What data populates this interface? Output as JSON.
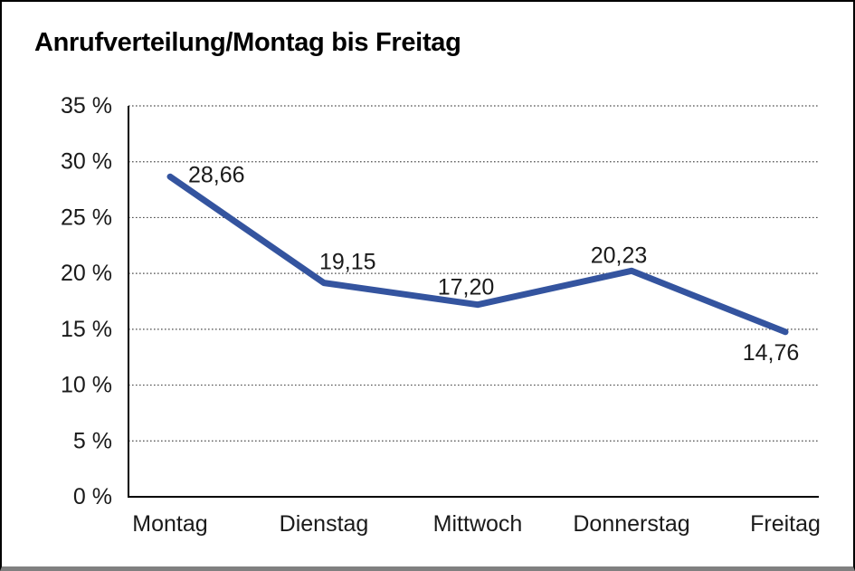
{
  "page": {
    "title": "Anrufverteilung/Montag bis Freitag"
  },
  "chart_data": {
    "type": "line",
    "title": "Anrufverteilung/Montag bis Freitag",
    "categories": [
      "Montag",
      "Dienstag",
      "Mittwoch",
      "Donnerstag",
      "Freitag"
    ],
    "values": [
      28.66,
      19.15,
      17.2,
      20.23,
      14.76
    ],
    "value_labels": [
      "28,66",
      "19,15",
      "17,20",
      "20,23",
      "14,76"
    ],
    "xlabel": "",
    "ylabel": "",
    "ylim": [
      0,
      35
    ],
    "yticks": [
      0,
      5,
      10,
      15,
      20,
      25,
      30,
      35
    ],
    "ytick_labels": [
      "0 %",
      "5 %",
      "10 %",
      "15 %",
      "20 %",
      "25 %",
      "30 %",
      "35 %"
    ],
    "grid": "horizontal-dotted",
    "legend": "none",
    "colors": {
      "line": "#34549F",
      "axis": "#000000",
      "grid_dots": "#4d4d4d",
      "text": "#1a1a1a",
      "background": "#ffffff",
      "frame_border": "#000000",
      "frame_bottom_band": "#808080"
    }
  }
}
